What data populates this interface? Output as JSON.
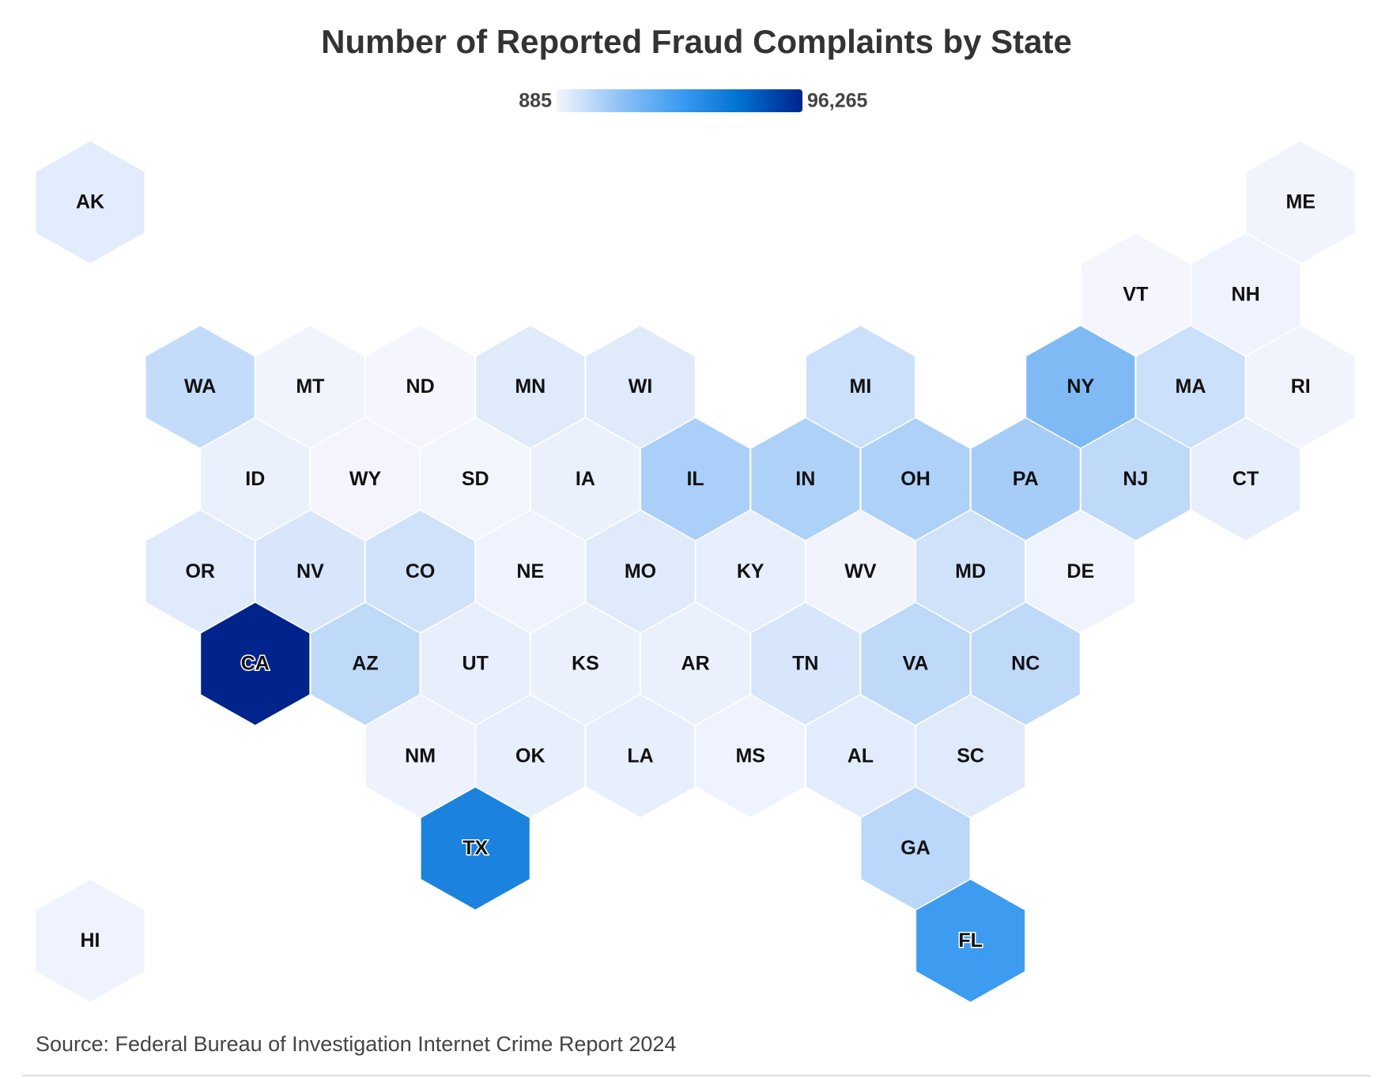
{
  "chart_data": {
    "type": "hexmap",
    "title": "Number of Reported Fraud Complaints by State",
    "legend_ticks": [
      885,
      {
        "value": 96265,
        "label": "96,265"
      }
    ],
    "colorscale": [
      "#f4f5fd",
      "#93c3f6",
      "#3d9cf0",
      "#0070d0",
      "#00238c"
    ],
    "categories": [
      "AK",
      "ME",
      "VT",
      "NH",
      "WA",
      "MT",
      "ND",
      "MN",
      "WI",
      "MI",
      "NY",
      "MA",
      "RI",
      "ID",
      "WY",
      "SD",
      "IA",
      "IL",
      "IN",
      "OH",
      "PA",
      "NJ",
      "CT",
      "OR",
      "NV",
      "CO",
      "NE",
      "MO",
      "KY",
      "WV",
      "MD",
      "DE",
      "CA",
      "AZ",
      "UT",
      "KS",
      "AR",
      "TN",
      "VA",
      "NC",
      "NM",
      "OK",
      "LA",
      "MS",
      "AL",
      "SC",
      "TX",
      "GA",
      "HI",
      "FL"
    ],
    "values": [
      5000,
      1500,
      885,
      2000,
      13000,
      1500,
      1000,
      6000,
      6000,
      11000,
      30000,
      11000,
      1500,
      3000,
      1200,
      1100,
      3000,
      19000,
      18000,
      18000,
      20000,
      14000,
      4000,
      6000,
      8000,
      10000,
      2000,
      6000,
      4000,
      1500,
      10000,
      2000,
      96265,
      14000,
      4000,
      3000,
      3000,
      8000,
      14000,
      14000,
      2500,
      4000,
      4000,
      2000,
      5000,
      6000,
      62000,
      15000,
      2000,
      48600
    ],
    "source": "Source: Federal Bureau of Investigation Internet Crime Report 2024"
  }
}
